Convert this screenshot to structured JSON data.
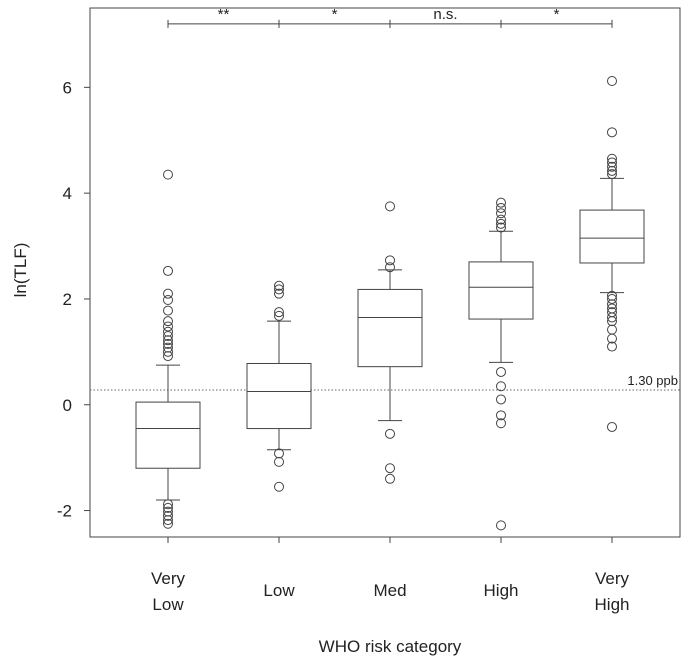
{
  "chart_data": {
    "type": "box",
    "title": "",
    "xlabel": "WHO risk category",
    "ylabel": "ln(TLF)",
    "ylim": [
      -2.5,
      7.5
    ],
    "yticks": [
      -2,
      0,
      2,
      4,
      6
    ],
    "ytick_labels": [
      "-2",
      "0",
      "2",
      "4",
      "6"
    ],
    "grid": false,
    "categories": [
      {
        "line1": "Very",
        "line2": "Low"
      },
      {
        "line1": "Low",
        "line2": ""
      },
      {
        "line1": "Med",
        "line2": ""
      },
      {
        "line1": "High",
        "line2": ""
      },
      {
        "line1": "Very",
        "line2": "High"
      }
    ],
    "boxes": [
      {
        "whisker_low": -1.8,
        "q1": -1.2,
        "median": -0.45,
        "q3": 0.05,
        "whisker_high": 0.75,
        "outliers": [
          -2.25,
          -2.18,
          -2.1,
          -2.02,
          -1.95,
          -1.88,
          0.92,
          1.0,
          1.08,
          1.15,
          1.22,
          1.3,
          1.38,
          1.48,
          1.58,
          1.78,
          1.98,
          2.1,
          2.53,
          4.35
        ]
      },
      {
        "whisker_low": -0.85,
        "q1": -0.45,
        "median": 0.25,
        "q3": 0.78,
        "whisker_high": 1.58,
        "outliers": [
          -1.55,
          -1.08,
          -0.92,
          1.68,
          1.75,
          2.1,
          2.18,
          2.25
        ]
      },
      {
        "whisker_low": -0.3,
        "q1": 0.72,
        "median": 1.65,
        "q3": 2.18,
        "whisker_high": 2.55,
        "outliers": [
          -1.4,
          -1.2,
          -0.55,
          2.6,
          2.73,
          3.75
        ]
      },
      {
        "whisker_low": 0.8,
        "q1": 1.62,
        "median": 2.22,
        "q3": 2.7,
        "whisker_high": 3.28,
        "outliers": [
          -2.28,
          -0.35,
          -0.2,
          0.1,
          0.35,
          0.62,
          3.35,
          3.42,
          3.5,
          3.62,
          3.72,
          3.82
        ]
      },
      {
        "whisker_low": 2.12,
        "q1": 2.68,
        "median": 3.15,
        "q3": 3.68,
        "whisker_high": 4.28,
        "outliers": [
          -0.42,
          1.1,
          1.25,
          1.42,
          1.58,
          1.65,
          1.75,
          1.82,
          1.9,
          2.0,
          2.06,
          4.36,
          4.42,
          4.5,
          4.58,
          4.65,
          5.15,
          6.12
        ]
      }
    ],
    "significance": [
      {
        "from": 0,
        "to": 1,
        "label": "**",
        "y": 7.2
      },
      {
        "from": 1,
        "to": 2,
        "label": "*",
        "y": 7.2
      },
      {
        "from": 2,
        "to": 3,
        "label": "n.s.",
        "y": 7.2
      },
      {
        "from": 3,
        "to": 4,
        "label": "*",
        "y": 7.2
      }
    ],
    "reference_line": {
      "y": 0.28,
      "label": "1.30 ppb",
      "style": "dotted"
    }
  },
  "colors": {
    "axis": "#444444",
    "box_stroke": "#444444",
    "outlier_stroke": "#444444",
    "reference": "#666666",
    "text": "#222222"
  }
}
